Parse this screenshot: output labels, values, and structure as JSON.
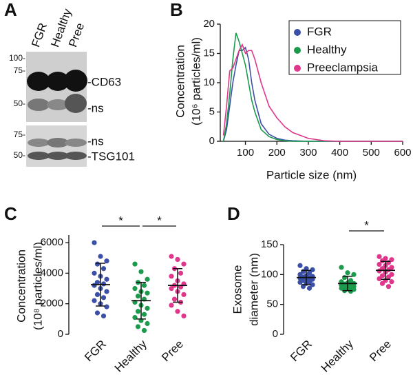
{
  "blot": {
    "panel_label": "A",
    "lanes": [
      "FGR",
      "Healthy",
      "Pree"
    ],
    "ladder_top": [
      "100-",
      "75-",
      "50-"
    ],
    "ladder_bottom": [
      "75-",
      "50-"
    ],
    "bands_top": [
      "-CD63",
      "-ns"
    ],
    "bands_bottom": [
      "-ns",
      "-TSG101"
    ]
  },
  "chart_data": [
    {
      "type": "line",
      "panel_label": "B",
      "ylabel": [
        "Concentration",
        "(10⁶ particles/ml)"
      ],
      "xlabel": "Particle size (nm)",
      "xlim": [
        20,
        600
      ],
      "xticks": [
        100,
        200,
        300,
        400,
        500,
        600
      ],
      "ylim": [
        0,
        20
      ],
      "yticks": [
        0,
        5,
        10,
        15,
        20
      ],
      "legend": "upper right",
      "x": [
        30,
        40,
        50,
        60,
        70,
        80,
        90,
        100,
        110,
        120,
        130,
        150,
        175,
        200,
        225,
        250,
        300,
        350,
        400,
        500,
        600
      ],
      "series": [
        {
          "name": "FGR",
          "color": "#3b4fa6",
          "values": [
            0,
            2,
            6,
            10,
            13,
            15.5,
            15.5,
            16,
            14,
            10,
            7,
            3,
            1.2,
            0.5,
            0.2,
            0.1,
            0,
            0,
            0,
            0,
            0
          ]
        },
        {
          "name": "Healthy",
          "color": "#1b9a4b",
          "values": [
            0,
            3,
            8,
            14,
            18.5,
            17,
            15,
            13,
            10,
            7,
            5,
            2,
            0.8,
            0.3,
            0.1,
            0,
            0,
            0,
            0,
            0,
            0
          ]
        },
        {
          "name": "Preeclampsia",
          "color": "#e0368b",
          "values": [
            1,
            6,
            12,
            12.5,
            14,
            15.5,
            16.5,
            15,
            15.5,
            15.5,
            14,
            10,
            6,
            4,
            2.5,
            1.5,
            0.5,
            0.1,
            0,
            0,
            0
          ]
        }
      ]
    },
    {
      "type": "strip",
      "panel_label": "C",
      "ylabel": [
        "Concentration",
        "(10⁸ particles/ml)"
      ],
      "categories": [
        "FGR",
        "Healthy",
        "Pree"
      ],
      "colors": [
        "#3b4fa6",
        "#1b9a4b",
        "#e0368b"
      ],
      "ylim": [
        0,
        6500
      ],
      "yticks": [
        0,
        2000,
        4000,
        6000
      ],
      "values": [
        [
          6000,
          5100,
          4800,
          4600,
          4300,
          4000,
          3800,
          3600,
          3400,
          3300,
          3200,
          3000,
          2800,
          2600,
          2400,
          2200,
          2000,
          1800,
          1400,
          1200
        ],
        [
          4600,
          4100,
          3600,
          3400,
          3200,
          3000,
          2800,
          2700,
          2500,
          2300,
          2100,
          1900,
          1700,
          1500,
          1300,
          1100,
          900,
          700,
          500,
          250
        ],
        [
          5100,
          4900,
          4600,
          4300,
          4000,
          3800,
          3500,
          3300,
          3200,
          3100,
          3000,
          2800,
          2600,
          2300,
          2100,
          1900,
          1500,
          1200
        ]
      ],
      "mean": [
        3250,
        2200,
        3200
      ],
      "sd": [
        1400,
        1200,
        1100
      ],
      "annotations": [
        {
          "text": "*",
          "between": [
            0,
            1
          ]
        },
        {
          "text": "*",
          "between": [
            1,
            2
          ]
        }
      ]
    },
    {
      "type": "strip",
      "panel_label": "D",
      "ylabel": [
        "Exosome",
        "diameter (nm)"
      ],
      "categories": [
        "FGR",
        "Healthy",
        "Pree"
      ],
      "colors": [
        "#3b4fa6",
        "#1b9a4b",
        "#e0368b"
      ],
      "ylim": [
        0,
        150
      ],
      "yticks": [
        0,
        50,
        100,
        150
      ],
      "values": [
        [
          115,
          110,
          108,
          105,
          103,
          100,
          98,
          97,
          96,
          95,
          94,
          93,
          92,
          90,
          88,
          87,
          85,
          83,
          80,
          77
        ],
        [
          112,
          103,
          100,
          95,
          90,
          88,
          86,
          85,
          84,
          83,
          82,
          81,
          80,
          79,
          78,
          77,
          76,
          75,
          73,
          72
        ],
        [
          130,
          127,
          125,
          123,
          120,
          117,
          115,
          112,
          110,
          108,
          106,
          104,
          100,
          98,
          96,
          93,
          90,
          88,
          85,
          80
        ]
      ],
      "mean": [
        95,
        85,
        107
      ],
      "sd": [
        12,
        12,
        15
      ],
      "annotations": [
        {
          "text": "*",
          "between": [
            1,
            2
          ]
        }
      ]
    }
  ]
}
